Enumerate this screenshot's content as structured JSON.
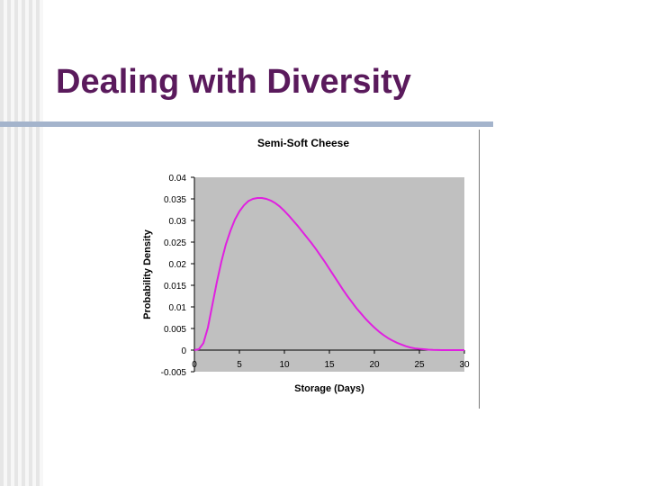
{
  "slide": {
    "title": "Dealing with Diversity"
  },
  "colors": {
    "title": "#5a1a5c",
    "rule": "#a4b4cc",
    "plot_area": "#c0c0c0",
    "curve": "#e020e0"
  },
  "chart_data": {
    "type": "line",
    "title": "Semi-Soft Cheese",
    "xlabel": "Storage (Days)",
    "ylabel": "Probability Density",
    "xlim": [
      0,
      30
    ],
    "ylim": [
      -0.005,
      0.04
    ],
    "x_ticks": [
      "0",
      "5",
      "10",
      "15",
      "20",
      "25",
      "30"
    ],
    "y_ticks": [
      "-0.005",
      "0",
      "0.005",
      "0.01",
      "0.015",
      "0.02",
      "0.025",
      "0.03",
      "0.035",
      "0.04"
    ],
    "grid": false,
    "legend": "none",
    "series": [
      {
        "x": [
          0,
          0.5,
          1,
          1.5,
          2,
          2.5,
          3,
          3.5,
          4,
          4.5,
          5,
          5.5,
          6,
          6.5,
          7,
          7.5,
          8,
          8.5,
          9,
          9.5,
          10,
          10.5,
          11,
          11.5,
          12,
          12.5,
          13,
          13.5,
          14,
          14.5,
          15,
          15.5,
          16,
          16.5,
          17,
          17.5,
          18,
          18.5,
          19,
          19.5,
          20,
          20.5,
          21,
          21.5,
          22,
          22.5,
          23,
          23.5,
          24,
          24.5,
          25,
          25.5,
          26,
          26.5,
          27,
          27.5,
          28,
          28.5,
          29,
          29.5,
          30
        ],
        "y": [
          0,
          0.0002,
          0.0016,
          0.0052,
          0.0105,
          0.0158,
          0.0205,
          0.0245,
          0.0276,
          0.0302,
          0.0321,
          0.0335,
          0.0345,
          0.035,
          0.0352,
          0.0352,
          0.035,
          0.0346,
          0.034,
          0.0332,
          0.0322,
          0.0311,
          0.0299,
          0.0287,
          0.0274,
          0.0261,
          0.0248,
          0.0234,
          0.0219,
          0.0204,
          0.0188,
          0.0172,
          0.0156,
          0.014,
          0.0125,
          0.0111,
          0.0097,
          0.0085,
          0.0073,
          0.0062,
          0.0052,
          0.0043,
          0.0035,
          0.0028,
          0.0022,
          0.0017,
          0.0013,
          0.0009,
          0.0006,
          0.0004,
          0.0003,
          0.0002,
          0.0001,
          5e-05,
          2e-05,
          1e-05,
          0,
          0,
          0,
          0,
          0
        ]
      }
    ]
  }
}
